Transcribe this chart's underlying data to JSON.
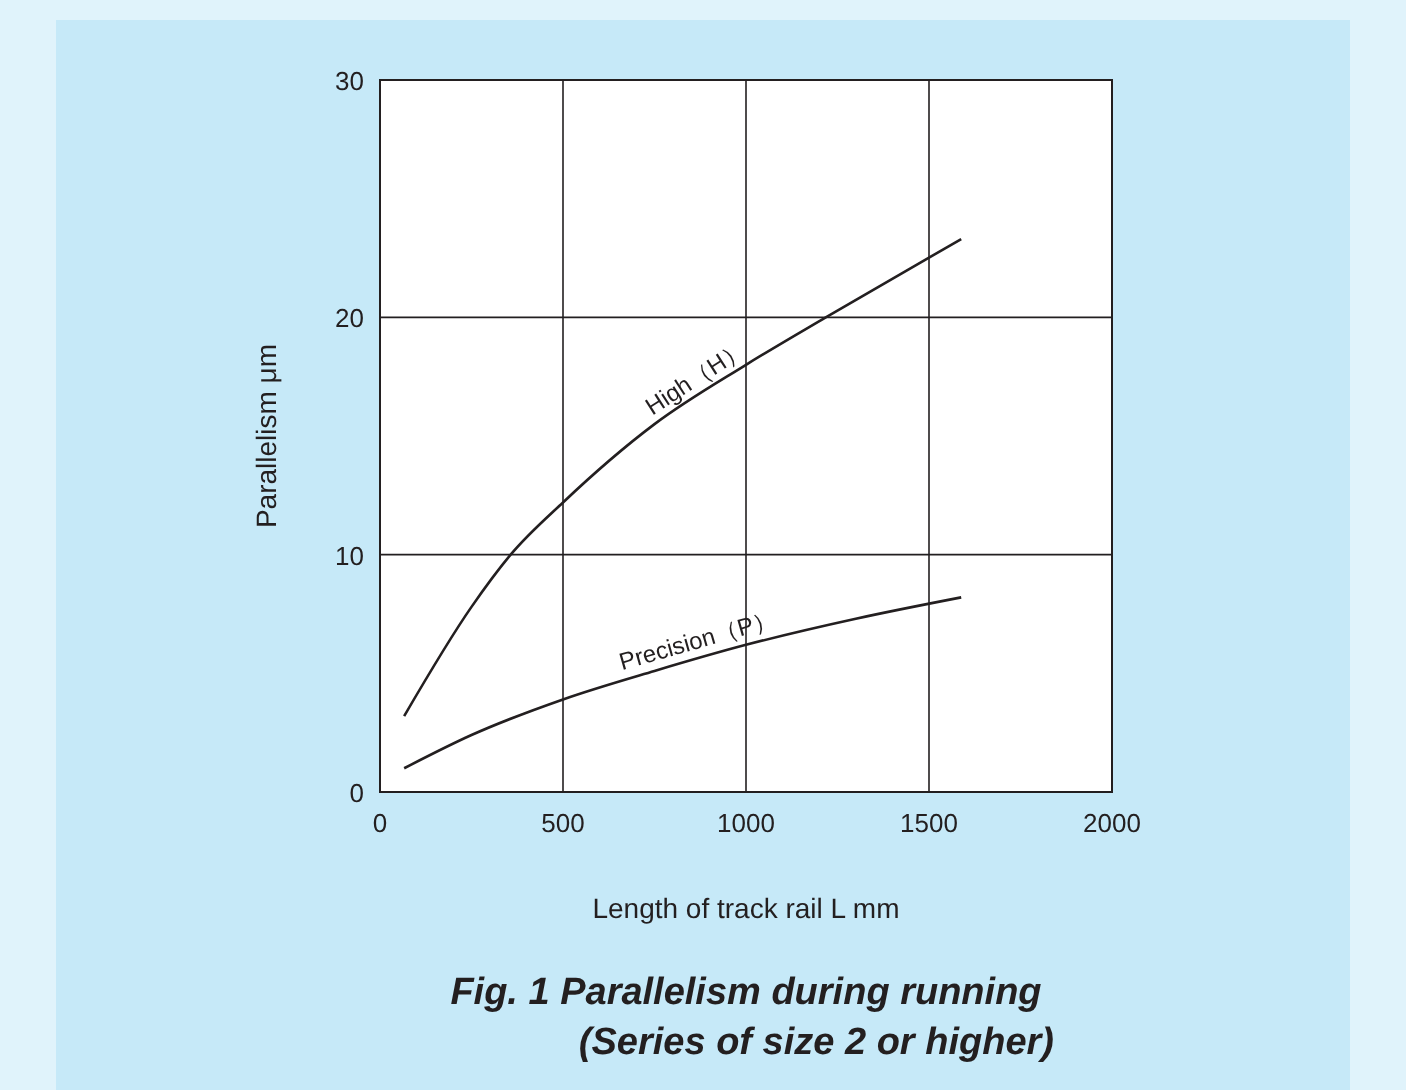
{
  "chart_data": {
    "type": "line",
    "title": "Fig. 1  Parallelism during running",
    "subtitle": "(Series of size 2 or higher)",
    "xlabel": "Length of track rail L mm",
    "ylabel": "Parallelism μm",
    "xlim": [
      0,
      2000
    ],
    "xticks": [
      0,
      500,
      1000,
      1500,
      2000
    ],
    "ylim": [
      0,
      30
    ],
    "yticks": [
      0,
      10,
      20,
      30
    ],
    "grid": true,
    "marker": "none",
    "line_style": "solid",
    "series": [
      {
        "name": "High（H）",
        "color": "#231f20",
        "x": [
          66,
          250,
          357,
          500,
          750,
          1000,
          1218,
          1588
        ],
        "values": [
          3.2,
          7.8,
          10,
          12.2,
          15.5,
          18.0,
          20,
          23.3
        ]
      },
      {
        "name": "Precision（P）",
        "color": "#231f20",
        "x": [
          66,
          250,
          500,
          750,
          1000,
          1300,
          1588
        ],
        "values": [
          1.0,
          2.4,
          3.9,
          5.1,
          6.2,
          7.3,
          8.2
        ]
      }
    ]
  }
}
